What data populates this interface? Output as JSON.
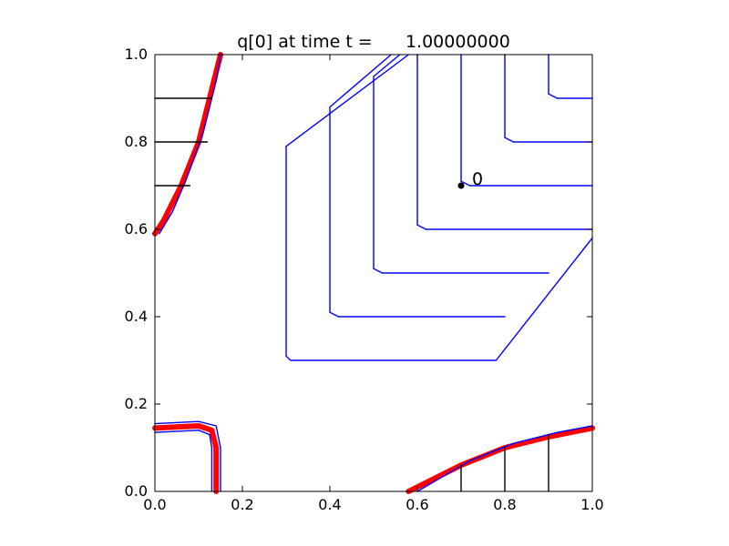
{
  "chart_data": {
    "type": "line",
    "title": "q[0] at time t =      1.00000000",
    "xlabel": "",
    "ylabel": "",
    "xlim": [
      0.0,
      1.0
    ],
    "ylim": [
      0.0,
      1.0
    ],
    "xticks": [
      "0.0",
      "0.2",
      "0.4",
      "0.6",
      "0.8",
      "1.0"
    ],
    "yticks": [
      "0.0",
      "0.2",
      "0.4",
      "0.6",
      "0.8",
      "1.0"
    ],
    "grid": false,
    "legend": "none",
    "colors": {
      "contour_primary": "#0000ff",
      "contour_secondary": "#ff0000",
      "contour_dark": "#000000",
      "marker": "#000000"
    },
    "annotations": [
      {
        "text": "0",
        "x": 0.7,
        "y": 0.7
      }
    ],
    "marker": {
      "x": 0.7,
      "y": 0.7
    },
    "series": [
      {
        "color": "#0000ff",
        "x": [
          0.7,
          0.7,
          0.72,
          1.0
        ],
        "y": [
          1.0,
          0.71,
          0.7,
          0.7
        ]
      },
      {
        "color": "#0000ff",
        "x": [
          0.8,
          0.8,
          0.82,
          1.0
        ],
        "y": [
          1.0,
          0.81,
          0.8,
          0.8
        ]
      },
      {
        "color": "#0000ff",
        "x": [
          0.9,
          0.9,
          0.92,
          1.0
        ],
        "y": [
          1.0,
          0.91,
          0.9,
          0.9
        ]
      },
      {
        "color": "#0000ff",
        "x": [
          0.6,
          0.6,
          0.62,
          1.0
        ],
        "y": [
          1.0,
          0.61,
          0.6,
          0.6
        ]
      },
      {
        "color": "#0000ff",
        "x": [
          0.56,
          0.5,
          0.5,
          0.52,
          0.9
        ],
        "y": [
          1.0,
          0.95,
          0.51,
          0.5,
          0.5
        ]
      },
      {
        "color": "#0000ff",
        "x": [
          0.54,
          0.4,
          0.4,
          0.42,
          0.8
        ],
        "y": [
          1.0,
          0.88,
          0.41,
          0.4,
          0.4
        ]
      },
      {
        "color": "#0000ff",
        "x": [
          0.58,
          0.3,
          0.3,
          0.31,
          0.78,
          1.0
        ],
        "y": [
          1.0,
          0.79,
          0.31,
          0.3,
          0.3,
          0.58
        ]
      },
      {
        "color": "#ff0000",
        "x": [
          0.0,
          0.02,
          0.06,
          0.1,
          0.13,
          0.15
        ],
        "y": [
          0.59,
          0.62,
          0.7,
          0.8,
          0.92,
          1.0
        ]
      },
      {
        "color": "#0000ff",
        "x": [
          0.01,
          0.04,
          0.07,
          0.11,
          0.14,
          0.15
        ],
        "y": [
          0.59,
          0.64,
          0.71,
          0.82,
          0.94,
          1.0
        ]
      },
      {
        "color": "#ff0000",
        "x": [
          0.0,
          0.1,
          0.13,
          0.14,
          0.14
        ],
        "y": [
          0.145,
          0.15,
          0.14,
          0.1,
          0.0
        ]
      },
      {
        "color": "#0000ff",
        "x": [
          0.0,
          0.1,
          0.14,
          0.15,
          0.15
        ],
        "y": [
          0.155,
          0.16,
          0.15,
          0.1,
          0.0
        ]
      },
      {
        "color": "#0000ff",
        "x": [
          0.0,
          0.1,
          0.125,
          0.13,
          0.13
        ],
        "y": [
          0.135,
          0.14,
          0.13,
          0.1,
          0.0
        ]
      },
      {
        "color": "#ff0000",
        "x": [
          0.58,
          0.7,
          0.8,
          0.9,
          1.0
        ],
        "y": [
          0.0,
          0.06,
          0.1,
          0.125,
          0.145
        ]
      },
      {
        "color": "#0000ff",
        "x": [
          0.6,
          0.72,
          0.82,
          0.92,
          1.0
        ],
        "y": [
          0.0,
          0.07,
          0.11,
          0.135,
          0.15
        ]
      },
      {
        "color": "#000000",
        "x": [
          0.0,
          0.13
        ],
        "y": [
          0.9,
          0.9
        ]
      },
      {
        "color": "#000000",
        "x": [
          0.0,
          0.12
        ],
        "y": [
          0.8,
          0.8
        ]
      },
      {
        "color": "#000000",
        "x": [
          0.0,
          0.08
        ],
        "y": [
          0.7,
          0.7
        ]
      },
      {
        "color": "#000000",
        "x": [
          0.8,
          0.8
        ],
        "y": [
          0.0,
          0.1
        ]
      },
      {
        "color": "#000000",
        "x": [
          0.9,
          0.9
        ],
        "y": [
          0.0,
          0.13
        ]
      },
      {
        "color": "#000000",
        "x": [
          0.7,
          0.7
        ],
        "y": [
          0.0,
          0.06
        ]
      }
    ]
  }
}
